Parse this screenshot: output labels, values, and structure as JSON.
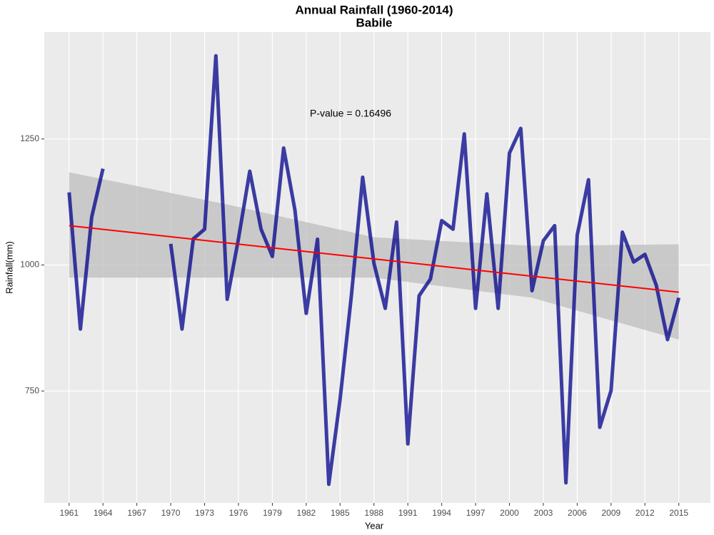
{
  "chart_data": {
    "type": "line",
    "title": "Annual Rainfall (1960-2014)",
    "subtitle": "Babile",
    "x_label": "Year",
    "y_label": "Rainfall(mm)",
    "annotation": "P-value = 0.16496",
    "x": [
      1961,
      1962,
      1963,
      1964,
      1965,
      1966,
      1967,
      1968,
      1969,
      1970,
      1971,
      1972,
      1973,
      1974,
      1975,
      1976,
      1977,
      1978,
      1979,
      1980,
      1981,
      1982,
      1983,
      1984,
      1985,
      1986,
      1987,
      1988,
      1989,
      1990,
      1991,
      1992,
      1993,
      1994,
      1995,
      1996,
      1997,
      1998,
      1999,
      2000,
      2001,
      2002,
      2003,
      2004,
      2005,
      2006,
      2007,
      2008,
      2009,
      2010,
      2011,
      2012,
      2013,
      2014,
      2015
    ],
    "series": [
      {
        "name": "Rainfall",
        "color": "#00008b",
        "values": [
          1144,
          873,
          1095,
          1191,
          null,
          null,
          null,
          null,
          null,
          1042,
          873,
          1052,
          1071,
          1415,
          932,
          1052,
          1186,
          1071,
          1017,
          1232,
          1109,
          904,
          1051,
          565,
          734,
          939,
          1174,
          1003,
          914,
          1085,
          645,
          939,
          972,
          1088,
          1071,
          1260,
          914,
          1141,
          914,
          1222,
          1271,
          949,
          1048,
          1078,
          568,
          1059,
          1169,
          678,
          751,
          1065,
          1006,
          1021,
          960,
          852,
          935
        ]
      }
    ],
    "trend": {
      "color": "#ff0000",
      "x": [
        1961,
        2015
      ],
      "values": [
        1078,
        946
      ]
    },
    "band": {
      "color": "#bebebe",
      "x": [
        1961,
        1975,
        1988,
        2002,
        2015
      ],
      "upper": [
        1184,
        1120,
        1055,
        1038,
        1041
      ],
      "lower": [
        975,
        975,
        975,
        935,
        852
      ]
    },
    "xlim": [
      1958.8,
      2017.8
    ],
    "ylim": [
      528,
      1462
    ],
    "xticks": [
      1961,
      1964,
      1967,
      1970,
      1973,
      1976,
      1979,
      1982,
      1985,
      1988,
      1991,
      1994,
      1997,
      2000,
      2003,
      2006,
      2009,
      2012,
      2015
    ],
    "yticks": [
      750,
      1000,
      1250
    ],
    "grid": true
  }
}
